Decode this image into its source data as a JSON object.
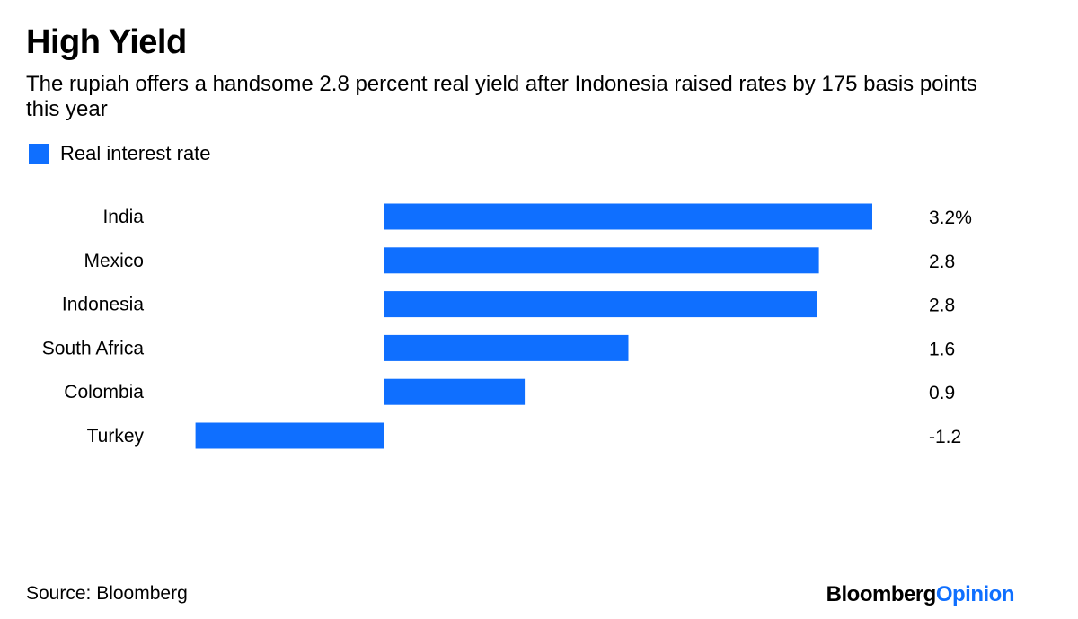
{
  "chart_data": {
    "type": "bar",
    "orientation": "horizontal",
    "title": "High Yield",
    "subtitle": "The rupiah offers a handsome 2.8 percent real yield after Indonesia raised rates by 175 basis points this year",
    "categories": [
      "India",
      "Mexico",
      "Indonesia",
      "South Africa",
      "Colombia",
      "Turkey"
    ],
    "series": [
      {
        "name": "Real interest rate",
        "values": [
          3.2,
          2.85,
          2.84,
          1.6,
          0.92,
          -1.24
        ]
      }
    ],
    "value_labels": [
      "3.2%",
      "2.8",
      "2.8",
      "1.6",
      "0.9",
      "-1.2"
    ],
    "legend_position": "top-left",
    "grid": false,
    "bar_color": "#0f6fff"
  },
  "footer": {
    "source": "Source: Bloomberg",
    "brand_part1": "Bloomberg",
    "brand_part2": "Opinion",
    "brand_color": "#0f6fff"
  }
}
